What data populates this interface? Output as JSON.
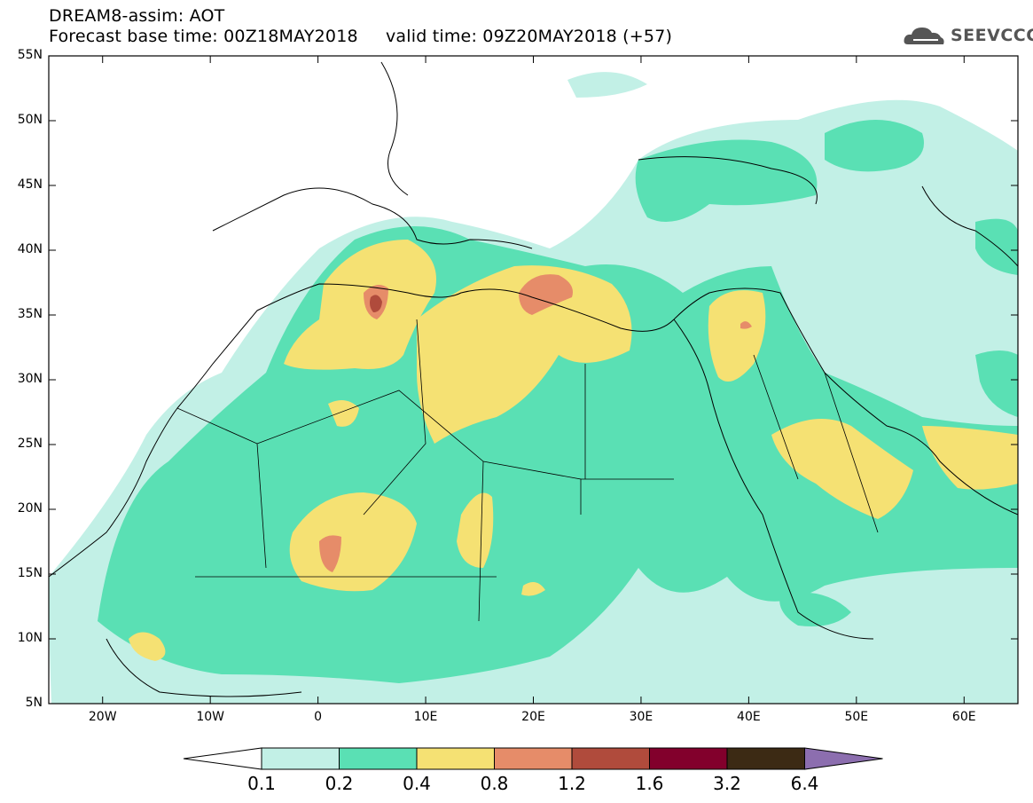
{
  "header": {
    "title_line1": "DREAM8-assim: AOT",
    "title_line2": "Forecast base time: 00Z18MAY2018     valid time: 09Z20MAY2018 (+57)",
    "logo_text": "SEEVCCC"
  },
  "map": {
    "type": "filled-contour",
    "variable": "AOT",
    "lon_range": [
      -25,
      65
    ],
    "lat_range": [
      5,
      55
    ],
    "lat_ticks": [
      "55N",
      "50N",
      "45N",
      "40N",
      "35N",
      "30N",
      "25N",
      "20N",
      "15N",
      "10N",
      "5N"
    ],
    "lon_ticks": [
      "20W",
      "10W",
      "0",
      "10E",
      "20E",
      "30E",
      "40E",
      "50E",
      "60E"
    ]
  },
  "colorbar": {
    "levels": [
      "0.1",
      "0.2",
      "0.4",
      "0.8",
      "1.2",
      "1.6",
      "3.2",
      "6.4"
    ],
    "colors": [
      "#c2f0e6",
      "#5ae0b4",
      "#f5e173",
      "#e68c69",
      "#b04b3c",
      "#82002c",
      "#3c2a14",
      "#8c6eaf"
    ],
    "under_color": "#ffffff"
  }
}
